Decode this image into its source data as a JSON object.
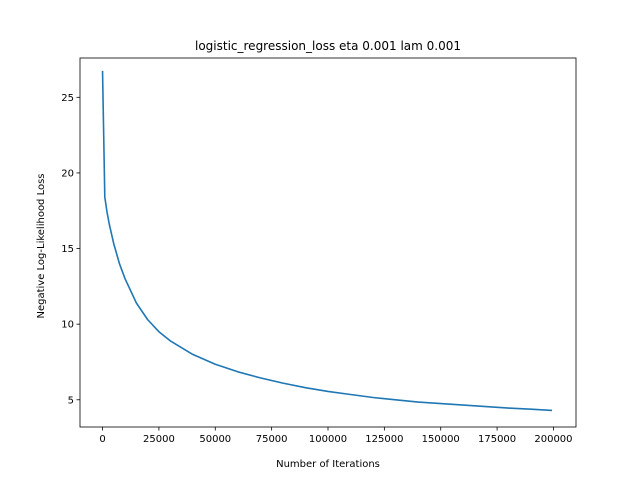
{
  "chart_data": {
    "type": "line",
    "title": "logistic_regression_loss eta 0.001 lam 0.001",
    "xlabel": "Number of Iterations",
    "ylabel": "Negative Log-Likelihood Loss",
    "xlim": [
      -10000,
      210000
    ],
    "ylim": [
      3.2,
      27.6
    ],
    "xticks": [
      0,
      25000,
      50000,
      75000,
      100000,
      125000,
      150000,
      175000,
      200000
    ],
    "xtick_labels": [
      "0",
      "25000",
      "50000",
      "75000",
      "100000",
      "125000",
      "150000",
      "175000",
      "200000"
    ],
    "yticks": [
      5,
      10,
      15,
      20,
      25
    ],
    "ytick_labels": [
      "5",
      "10",
      "15",
      "20",
      "25"
    ],
    "grid": false,
    "series": [
      {
        "color": "#1f77b4",
        "x": [
          0,
          1000,
          2000,
          3000,
          5000,
          7500,
          10000,
          15000,
          20000,
          25000,
          30000,
          40000,
          50000,
          60000,
          70000,
          80000,
          90000,
          100000,
          110000,
          120000,
          130000,
          140000,
          150000,
          160000,
          170000,
          180000,
          190000,
          199000
        ],
        "y": [
          26.7,
          18.4,
          17.4,
          16.6,
          15.3,
          14.0,
          13.0,
          11.4,
          10.3,
          9.5,
          8.9,
          8.0,
          7.35,
          6.85,
          6.45,
          6.1,
          5.8,
          5.55,
          5.35,
          5.15,
          5.0,
          4.85,
          4.75,
          4.65,
          4.55,
          4.45,
          4.38,
          4.3
        ]
      }
    ]
  }
}
